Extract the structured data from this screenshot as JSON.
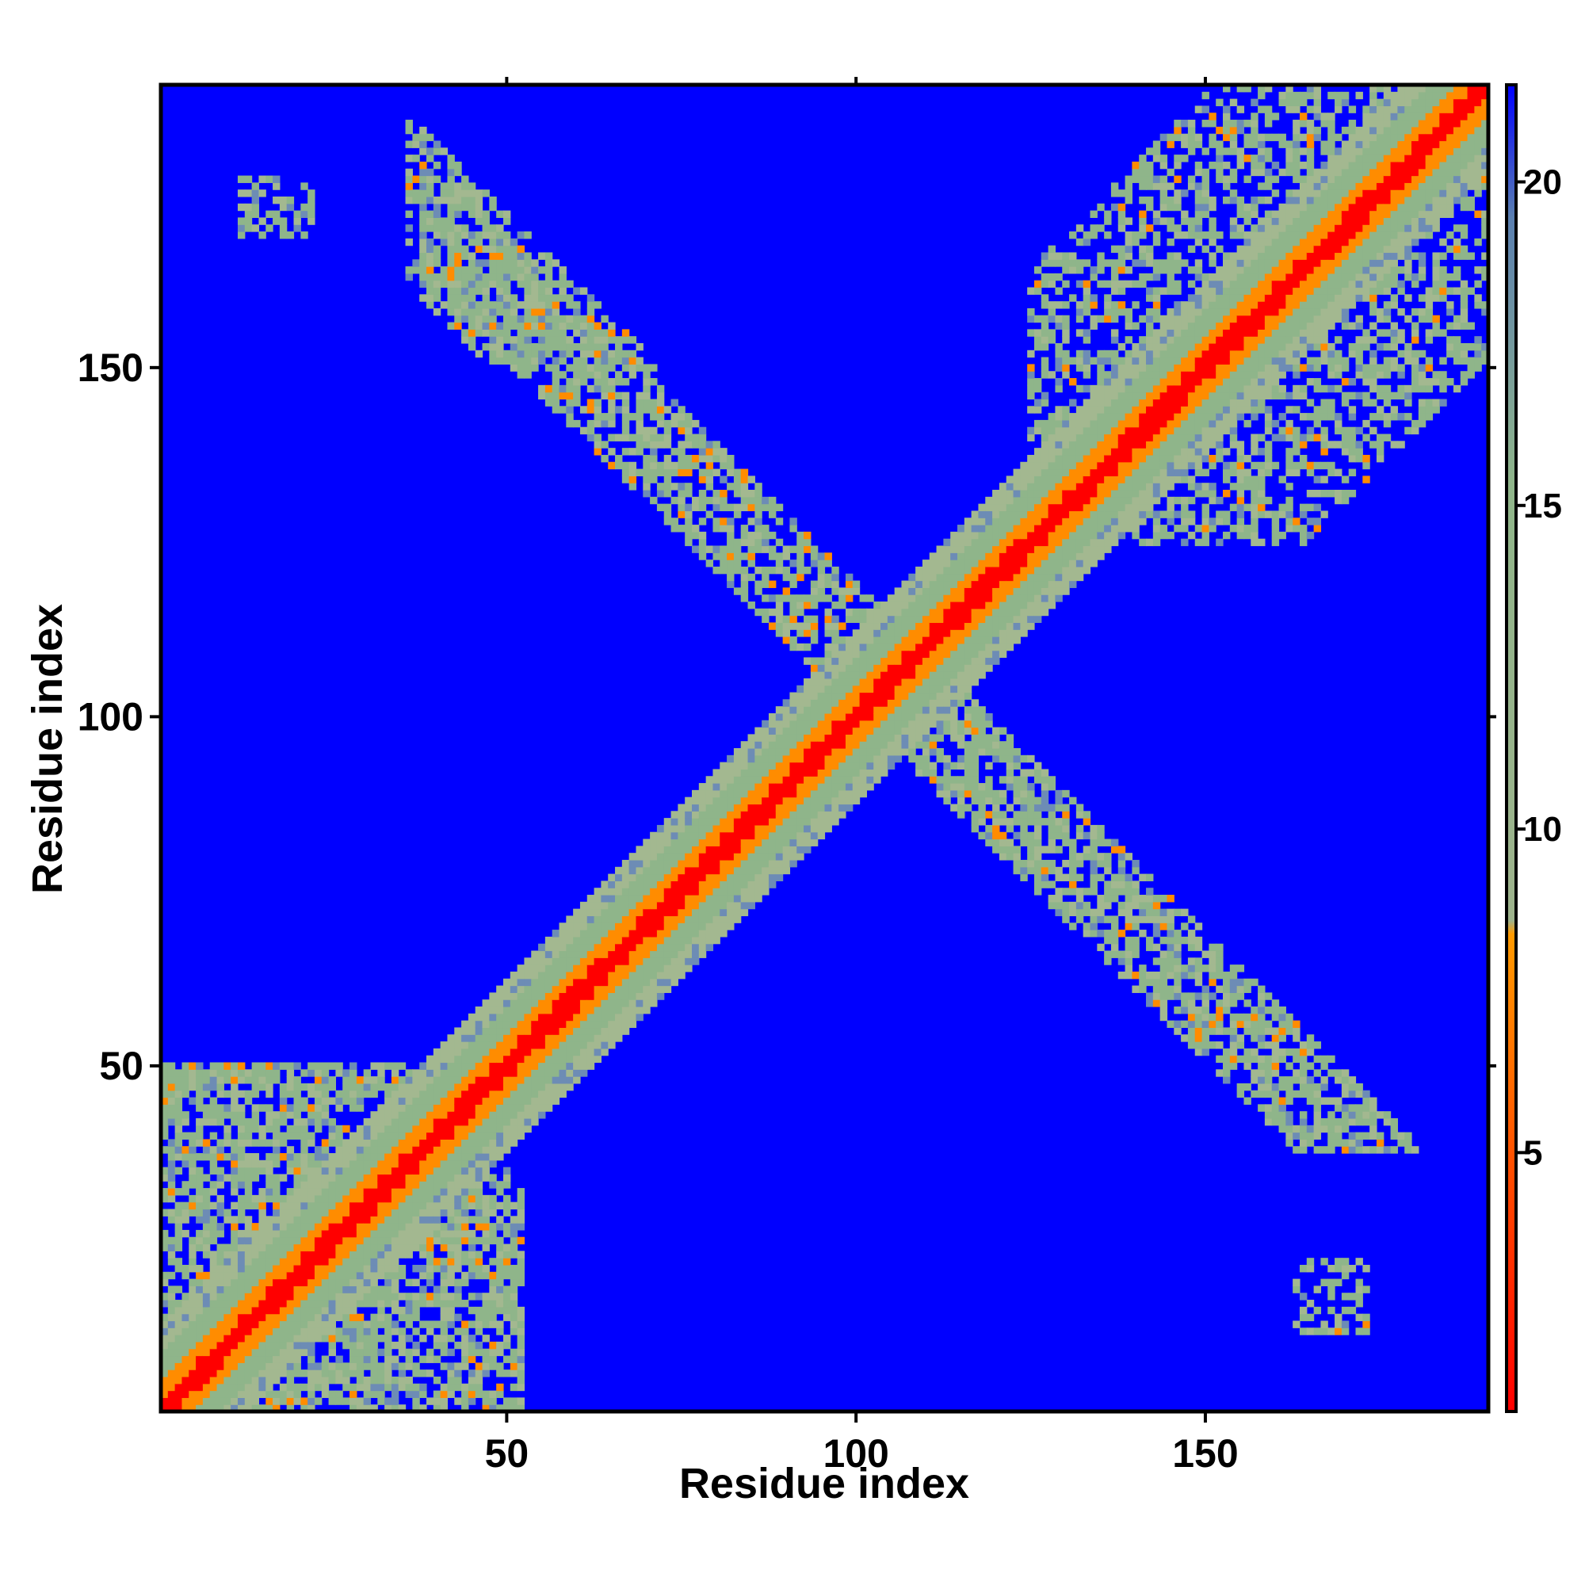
{
  "chart_data": {
    "type": "heatmap",
    "title": "",
    "xlabel": "Residue index",
    "ylabel": "Residue index",
    "xlim": [
      1,
      190
    ],
    "ylim": [
      1,
      190
    ],
    "x_ticks": [
      "50",
      "100",
      "150"
    ],
    "y_ticks": [
      "50",
      "100",
      "150"
    ],
    "colorbar": {
      "ticks": [
        "5",
        "10",
        "15",
        "20"
      ],
      "range": [
        1,
        21.5
      ],
      "colors": [
        "#ff0000",
        "#ff8c00",
        "#8fb58a",
        "#5a7fb0",
        "#0000ff"
      ]
    },
    "colors": {
      "far": "#0000ff",
      "contact_close": "#ff0000",
      "contact_mid": "#ff8c00",
      "band_light": "#8fb58a",
      "band_mid": "#a3b890",
      "band_blue": "#6d8cb5"
    },
    "features": [
      {
        "name": "main-diagonal",
        "from": [
          1,
          1
        ],
        "to": [
          190,
          190
        ]
      },
      {
        "name": "antiparallel-band",
        "from": [
          40,
          170
        ],
        "to": [
          190,
          40
        ]
      },
      {
        "name": "n-terminal-cluster",
        "x_range": [
          1,
          55
        ],
        "y_range": [
          1,
          52
        ]
      },
      {
        "name": "c-terminal-cluster",
        "x_range": [
          130,
          190
        ],
        "y_range": [
          120,
          190
        ]
      },
      {
        "name": "small-patch-upper-left",
        "center": [
          17,
          173
        ]
      },
      {
        "name": "small-patch-lower-right",
        "center": [
          168,
          17
        ]
      }
    ]
  }
}
